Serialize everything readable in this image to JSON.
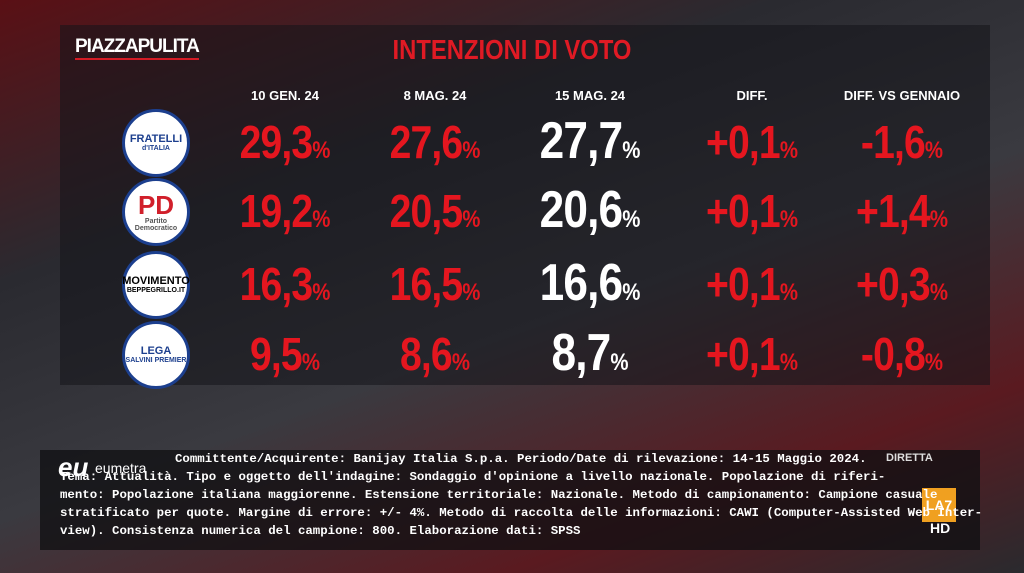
{
  "header": {
    "brand_a": "PIAZZA",
    "brand_b": "PULITA",
    "title": "INTENZIONI DI VOTO"
  },
  "table": {
    "columns": [
      "10 GEN. 24",
      "8 MAG. 24",
      "15 MAG. 24",
      "DIFF.",
      "DIFF. VS GENNAIO"
    ],
    "rows": [
      {
        "party": [
          "FRATELLI",
          "d'ITALIA"
        ],
        "cells": [
          {
            "value": "29,3",
            "unit": "%"
          },
          {
            "value": "27,6",
            "unit": "%"
          },
          {
            "value": "27,7",
            "unit": "%"
          },
          {
            "value": "+0,1",
            "unit": "%"
          },
          {
            "value": "-1,6",
            "unit": "%"
          }
        ]
      },
      {
        "party": [
          "PD",
          "Partito Democratico"
        ],
        "cells": [
          {
            "value": "19,2",
            "unit": "%"
          },
          {
            "value": "20,5",
            "unit": "%"
          },
          {
            "value": "20,6",
            "unit": "%"
          },
          {
            "value": "+0,1",
            "unit": "%"
          },
          {
            "value": "+1,4",
            "unit": "%"
          }
        ]
      },
      {
        "party": [
          "MOVIMENTO",
          "BEPPEGRILLO.IT"
        ],
        "cells": [
          {
            "value": "16,3",
            "unit": "%"
          },
          {
            "value": "16,5",
            "unit": "%"
          },
          {
            "value": "16,6",
            "unit": "%"
          },
          {
            "value": "+0,1",
            "unit": "%"
          },
          {
            "value": "+0,3",
            "unit": "%"
          }
        ]
      },
      {
        "party": [
          "LEGA",
          "SALVINI PREMIER"
        ],
        "cells": [
          {
            "value": "9,5",
            "unit": "%"
          },
          {
            "value": "8,6",
            "unit": "%"
          },
          {
            "value": "8,7",
            "unit": "%"
          },
          {
            "value": "+0,1",
            "unit": "%"
          },
          {
            "value": "-0,8",
            "unit": "%"
          }
        ]
      }
    ]
  },
  "footer": {
    "logo_a": "eu",
    "logo_b": "eumetra",
    "lines": [
      "Committente/Acquirente: Banijay Italia S.p.a. Periodo/Date di rilevazione: 14-15 Maggio 2024.",
      "Tema: Attualità. Tipo e oggetto dell'indagine: Sondaggio d'opinione a livello nazionale. Popolazione di riferi-",
      "mento: Popolazione italiana maggiorenne. Estensione territoriale: Nazionale. Metodo di campionamento: Campione casuale",
      "stratificato per quote. Margine di errore: +/- 4%. Metodo di raccolta delle informazioni: CAWI (Computer-Assisted Web Inter-",
      "view). Consistenza numerica del campione: 800. Elaborazione dati: SPSS"
    ]
  },
  "channel": {
    "live": "DIRETTA",
    "name": "LA7",
    "hd": "HD"
  }
}
